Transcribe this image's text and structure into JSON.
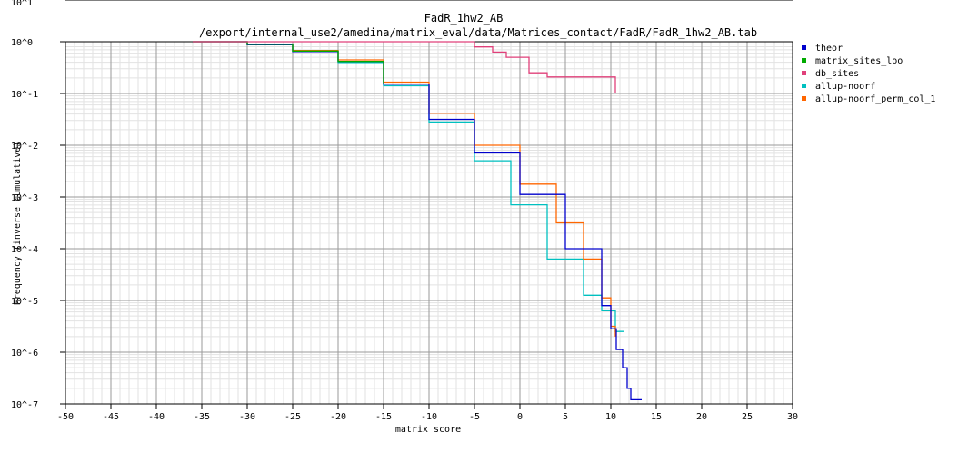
{
  "chart_data": {
    "type": "line",
    "title": "FadR_1hw2_AB",
    "subtitle": "/export/internal_use2/amedina/matrix_eval/data/Matrices_contact/FadR/FadR_1hw2_AB.tab",
    "xlabel": "matrix score",
    "ylabel": "Frequency (inverse cumulative)",
    "xlim": [
      -50,
      30
    ],
    "y_scale": "log10",
    "ylim_exponent": [
      -7,
      0
    ],
    "grid": true,
    "legend_position": "right",
    "x_ticks": [
      "-50",
      "-45",
      "-40",
      "-35",
      "-30",
      "-25",
      "-20",
      "-15",
      "-10",
      "-5",
      "0",
      "5",
      "10",
      "15",
      "20",
      "25",
      "30"
    ],
    "y_ticks": [
      "10^0",
      "10^-1",
      "10^-2",
      "10^-3",
      "10^-4",
      "10^-5",
      "10^-6",
      "10^-7"
    ],
    "y_top_partial_label": "10^1",
    "series": [
      {
        "name": "theor",
        "color": "#0000cc",
        "points": [
          [
            -36,
            0
          ],
          [
            -30,
            -0.06
          ],
          [
            -25,
            -0.19
          ],
          [
            -20,
            -0.38
          ],
          [
            -15,
            -0.82
          ],
          [
            -10,
            -1.5
          ],
          [
            -5,
            -2.15
          ],
          [
            0,
            -2.95
          ],
          [
            5,
            -4.0
          ],
          [
            9,
            -5.1
          ],
          [
            10,
            -5.55
          ],
          [
            10.6,
            -5.95
          ],
          [
            11.3,
            -6.3
          ],
          [
            11.8,
            -6.7
          ],
          [
            12.2,
            -6.92
          ],
          [
            13.4,
            -6.92
          ]
        ]
      },
      {
        "name": "matrix_sites_loo",
        "color": "#00aa00",
        "points": [
          [
            -36,
            0
          ],
          [
            -30,
            -0.05
          ],
          [
            -25,
            -0.18
          ],
          [
            -20,
            -0.38
          ],
          [
            -15,
            -0.8
          ]
        ]
      },
      {
        "name": "db_sites",
        "color": "#e0407a",
        "points": [
          [
            -36,
            0
          ],
          [
            -6,
            0
          ],
          [
            -5,
            -0.1
          ],
          [
            -3,
            -0.2
          ],
          [
            -1.5,
            -0.3
          ],
          [
            1,
            -0.6
          ],
          [
            3,
            -0.68
          ],
          [
            9,
            -0.68
          ],
          [
            10.5,
            -1.0
          ]
        ]
      },
      {
        "name": "allup-noorf",
        "color": "#00c0c0",
        "points": [
          [
            -36,
            0
          ],
          [
            -30,
            -0.05
          ],
          [
            -25,
            -0.19
          ],
          [
            -20,
            -0.4
          ],
          [
            -15,
            -0.85
          ],
          [
            -10,
            -1.55
          ],
          [
            -5,
            -2.3
          ],
          [
            -1,
            -3.15
          ],
          [
            3,
            -4.2
          ],
          [
            7,
            -4.9
          ],
          [
            9,
            -5.2
          ],
          [
            10.5,
            -5.6
          ],
          [
            11.5,
            -5.6
          ]
        ]
      },
      {
        "name": "allup-noorf_perm_col_1",
        "color": "#ff6600",
        "points": [
          [
            -36,
            0
          ],
          [
            -30,
            -0.05
          ],
          [
            -25,
            -0.17
          ],
          [
            -20,
            -0.35
          ],
          [
            -15,
            -0.78
          ],
          [
            -10,
            -1.38
          ],
          [
            -5,
            -2.0
          ],
          [
            0,
            -2.75
          ],
          [
            4,
            -3.5
          ],
          [
            7,
            -4.2
          ],
          [
            9,
            -4.95
          ],
          [
            10,
            -5.5
          ],
          [
            10.5,
            -5.7
          ]
        ]
      }
    ]
  }
}
